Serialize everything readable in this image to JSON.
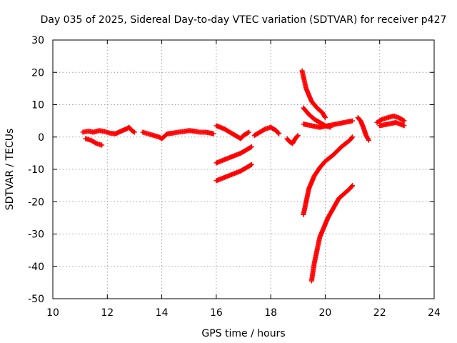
{
  "chart_data": {
    "type": "scatter",
    "title": "Day 035 of 2025, Sidereal Day-to-day VTEC variation (SDTVAR) for receiver p427",
    "xlabel": "GPS time / hours",
    "ylabel": "SDTVAR / TECUs",
    "xlim": [
      10,
      24
    ],
    "ylim": [
      -50,
      30
    ],
    "xticks": [
      "10",
      "12",
      "14",
      "16",
      "18",
      "20",
      "22",
      "24"
    ],
    "yticks": [
      "30",
      "20",
      "10",
      "0",
      "-10",
      "-20",
      "-30",
      "-40",
      "-50"
    ],
    "grid": true,
    "legend": "none",
    "marker": "plus",
    "color": "#ff0000",
    "series": [
      {
        "x": [
          11.1,
          11.3,
          11.5,
          11.7,
          11.9,
          12.1,
          12.3,
          12.5,
          12.7,
          12.8,
          12.9,
          13.0
        ],
        "y": [
          1.5,
          1.8,
          1.5,
          2.0,
          1.7,
          1.2,
          1.0,
          1.8,
          2.5,
          3.0,
          2.0,
          1.5
        ]
      },
      {
        "x": [
          11.2,
          11.4,
          11.6,
          11.8
        ],
        "y": [
          -0.5,
          -1.0,
          -2.0,
          -2.5
        ]
      },
      {
        "x": [
          13.3,
          13.5,
          13.7,
          13.9,
          14.0,
          14.2,
          14.4,
          14.6,
          14.8,
          15.0,
          15.2,
          15.4,
          15.6,
          15.8,
          15.9
        ],
        "y": [
          1.5,
          1.0,
          0.5,
          0.0,
          -0.5,
          1.0,
          1.2,
          1.5,
          1.7,
          2.0,
          1.8,
          1.5,
          1.5,
          1.2,
          1.0
        ]
      },
      {
        "x": [
          16.0,
          16.3,
          16.6,
          16.9,
          17.0,
          17.2
        ],
        "y": [
          3.5,
          2.5,
          1.0,
          -0.5,
          0.5,
          1.5
        ]
      },
      {
        "x": [
          16.0,
          16.3,
          16.6,
          16.9,
          17.1,
          17.3
        ],
        "y": [
          -8.0,
          -7.0,
          -6.0,
          -5.0,
          -4.0,
          -3.0
        ]
      },
      {
        "x": [
          16.0,
          16.3,
          16.6,
          16.9,
          17.1,
          17.3
        ],
        "y": [
          -13.5,
          -12.5,
          -11.5,
          -10.5,
          -9.5,
          -8.5
        ]
      },
      {
        "x": [
          17.4,
          17.6,
          17.8,
          18.0,
          18.2,
          18.3
        ],
        "y": [
          0.5,
          1.5,
          2.5,
          3.0,
          2.0,
          1.0
        ]
      },
      {
        "x": [
          18.6,
          18.7,
          18.8,
          18.9,
          19.0
        ],
        "y": [
          -0.5,
          -1.5,
          -2.0,
          -0.5,
          0.5
        ]
      },
      {
        "x": [
          19.15,
          19.3,
          19.5,
          19.7,
          19.9,
          20.0
        ],
        "y": [
          20.5,
          15.0,
          11.0,
          9.0,
          7.5,
          6.0
        ]
      },
      {
        "x": [
          19.2,
          19.4,
          19.6,
          19.8,
          20.0,
          20.2
        ],
        "y": [
          9.0,
          7.0,
          5.5,
          4.5,
          3.5,
          3.0
        ]
      },
      {
        "x": [
          19.2,
          19.5,
          19.8,
          20.1,
          20.4,
          20.7,
          21.0
        ],
        "y": [
          4.0,
          3.5,
          3.0,
          3.5,
          4.0,
          4.5,
          5.0
        ]
      },
      {
        "x": [
          19.2,
          19.4,
          19.6,
          19.8,
          20.0,
          20.3,
          20.6,
          20.9,
          21.0
        ],
        "y": [
          -24.0,
          -16.0,
          -12.0,
          -9.5,
          -7.5,
          -5.5,
          -3.0,
          -1.0,
          0.0
        ]
      },
      {
        "x": [
          19.5,
          19.6,
          19.7,
          19.8,
          19.9,
          20.1,
          20.3,
          20.5,
          20.7,
          20.9,
          21.0
        ],
        "y": [
          -44.5,
          -39.0,
          -35.0,
          -31.0,
          -29.0,
          -25.0,
          -22.0,
          -19.0,
          -17.5,
          -16.0,
          -15.0
        ]
      },
      {
        "x": [
          21.2,
          21.3,
          21.4,
          21.5,
          21.6
        ],
        "y": [
          6.0,
          5.0,
          3.0,
          0.5,
          -1.0
        ]
      },
      {
        "x": [
          21.9,
          22.1,
          22.3,
          22.5,
          22.7,
          22.9
        ],
        "y": [
          4.5,
          5.5,
          6.0,
          6.5,
          6.0,
          5.0
        ]
      },
      {
        "x": [
          22.0,
          22.3,
          22.6,
          22.9
        ],
        "y": [
          3.5,
          4.0,
          4.5,
          3.5
        ]
      }
    ]
  }
}
